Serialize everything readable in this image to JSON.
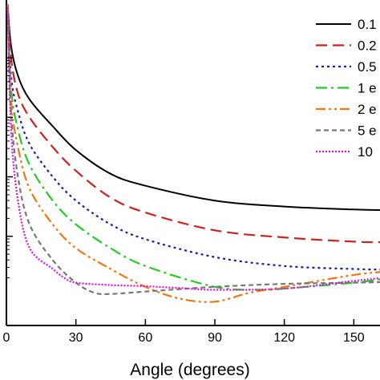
{
  "chart_data": {
    "type": "line",
    "title": "",
    "xlabel": "Angle (degrees)",
    "ylabel": "",
    "xlim": [
      0,
      162
    ],
    "x_ticks": [
      0,
      30,
      60,
      90,
      120,
      150
    ],
    "x_tick_labels": [
      "0",
      "30",
      "60",
      "90",
      "120",
      "150"
    ],
    "yscale": "log",
    "ylim_log10": [
      -4.5,
      1.0
    ],
    "y_minor_ticks_log10": [
      -3,
      -2,
      -1,
      0
    ],
    "grid": false,
    "legend_position": "top-right",
    "series": [
      {
        "name": "0.1",
        "color": "#000000",
        "dash": "solid",
        "x": [
          0.5,
          2,
          5,
          10,
          20,
          30,
          45,
          60,
          90,
          120,
          150,
          162
        ],
        "y_log10": [
          0.9,
          0.2,
          -0.3,
          -0.7,
          -1.15,
          -1.55,
          -1.95,
          -2.15,
          -2.4,
          -2.5,
          -2.55,
          -2.56
        ]
      },
      {
        "name": "0.2",
        "color": "#cc2222",
        "dash": "long-dash",
        "x": [
          0.5,
          2,
          5,
          10,
          20,
          30,
          45,
          60,
          90,
          120,
          150,
          162
        ],
        "y_log10": [
          0.9,
          0.0,
          -0.6,
          -1.0,
          -1.5,
          -1.9,
          -2.35,
          -2.6,
          -2.9,
          -3.02,
          -3.09,
          -3.1
        ]
      },
      {
        "name": "0.5",
        "color": "#1a1aaa",
        "dash": "dotted",
        "x": [
          0.5,
          2,
          5,
          10,
          20,
          30,
          45,
          60,
          90,
          120,
          150,
          162
        ],
        "y_log10": [
          0.9,
          -0.3,
          -0.9,
          -1.45,
          -2.0,
          -2.4,
          -2.8,
          -3.05,
          -3.35,
          -3.5,
          -3.55,
          -3.56
        ]
      },
      {
        "name": "1 e",
        "color": "#22cc22",
        "dash": "dash-dot",
        "x": [
          0.5,
          2,
          5,
          10,
          20,
          30,
          45,
          60,
          90,
          110,
          120,
          150,
          162
        ],
        "y_log10": [
          0.9,
          -0.5,
          -1.2,
          -1.8,
          -2.4,
          -2.8,
          -3.2,
          -3.5,
          -3.85,
          -3.9,
          -3.88,
          -3.78,
          -3.72
        ]
      },
      {
        "name": "2 e",
        "color": "#ee7711",
        "dash": "dash-dot-dot",
        "x": [
          0.5,
          2,
          5,
          10,
          20,
          30,
          45,
          60,
          75,
          90,
          105,
          120,
          150,
          162
        ],
        "y_log10": [
          0.9,
          -0.7,
          -1.5,
          -2.2,
          -2.8,
          -3.2,
          -3.55,
          -3.85,
          -4.05,
          -4.1,
          -3.95,
          -3.85,
          -3.65,
          -3.6
        ]
      },
      {
        "name": "5 e",
        "color": "#777777",
        "dash": "short-dash",
        "x": [
          0.5,
          2,
          5,
          10,
          20,
          30,
          38,
          45,
          60,
          90,
          120,
          150,
          162
        ],
        "y_log10": [
          0.9,
          -0.9,
          -2.0,
          -2.8,
          -3.4,
          -3.78,
          -3.95,
          -3.97,
          -3.93,
          -3.85,
          -3.8,
          -3.78,
          -3.77
        ]
      },
      {
        "name": "10",
        "color": "#dd11dd",
        "dash": "dense-dot",
        "x": [
          0.5,
          2,
          5,
          10,
          20,
          25,
          30,
          45,
          60,
          75,
          90,
          120,
          150,
          162
        ],
        "y_log10": [
          0.9,
          -1.2,
          -2.4,
          -3.2,
          -3.55,
          -3.7,
          -3.78,
          -3.82,
          -3.84,
          -3.87,
          -3.9,
          -3.88,
          -3.75,
          -3.7
        ]
      }
    ]
  }
}
